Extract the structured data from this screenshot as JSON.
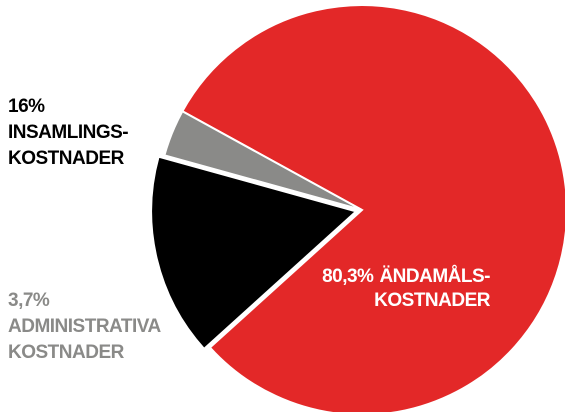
{
  "chart_data": {
    "type": "pie",
    "categories": [
      [
        "ÄNDAMÅLS-",
        "KOSTNADER"
      ],
      [
        "INSAMLINGS-",
        "KOSTNADER"
      ],
      [
        "ADMINISTRATIVA",
        "KOSTNADER"
      ]
    ],
    "values": [
      80.3,
      16,
      3.7
    ],
    "value_labels": [
      "80,3%",
      "16%",
      "3,7%"
    ],
    "colors": [
      "#e32828",
      "#000000",
      "#8a8a88"
    ]
  }
}
